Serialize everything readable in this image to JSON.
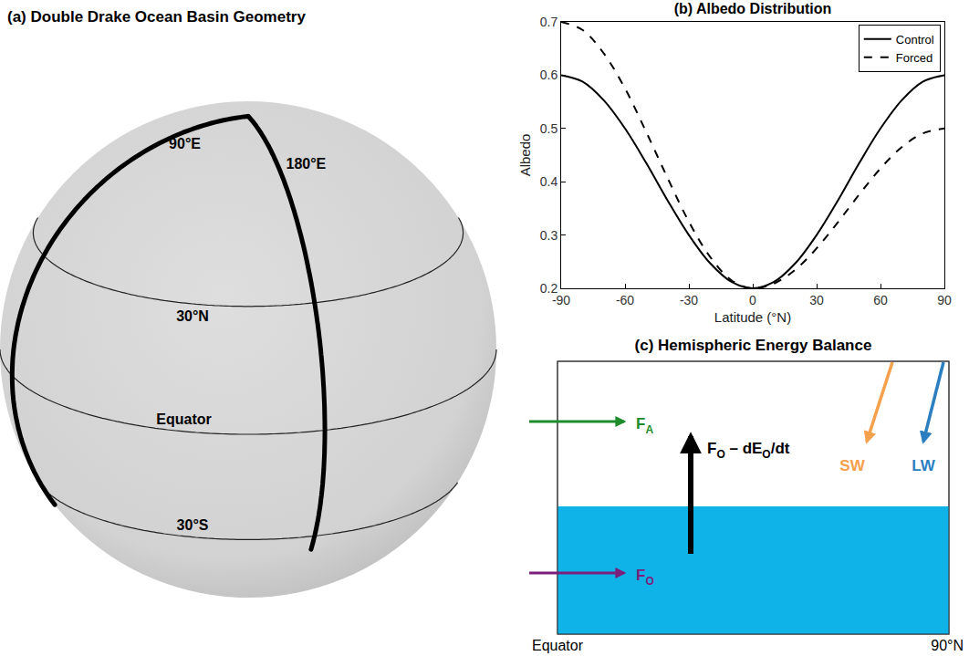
{
  "chart_data": {
    "type": "line",
    "title": "(b) Albedo Distribution",
    "xlabel": "Latitude (°N)",
    "ylabel": "Albedo",
    "x": [
      -90,
      -80,
      -70,
      -60,
      -50,
      -40,
      -30,
      -20,
      -10,
      0,
      10,
      20,
      30,
      40,
      50,
      60,
      70,
      80,
      90
    ],
    "series": [
      {
        "name": "Control",
        "color": "#000000",
        "line_style": "solid",
        "values": [
          0.6,
          0.588,
          0.553,
          0.5,
          0.435,
          0.365,
          0.3,
          0.247,
          0.212,
          0.2,
          0.212,
          0.247,
          0.3,
          0.365,
          0.435,
          0.5,
          0.553,
          0.588,
          0.6
        ]
      },
      {
        "name": "Forced",
        "color": "#000000",
        "line_style": "dash",
        "values": [
          0.7,
          0.685,
          0.641,
          0.575,
          0.493,
          0.407,
          0.325,
          0.259,
          0.215,
          0.2,
          0.209,
          0.235,
          0.275,
          0.324,
          0.376,
          0.425,
          0.465,
          0.491,
          0.5
        ]
      }
    ],
    "xlim": [
      -90,
      90
    ],
    "xticks": [
      -90,
      -60,
      -30,
      0,
      30,
      60,
      90
    ],
    "ylim": [
      0.2,
      0.7
    ],
    "yticks": [
      0.2,
      0.3,
      0.4,
      0.5,
      0.6,
      0.7
    ],
    "grid": false,
    "legend": "top right"
  },
  "panel_a": {
    "title": "(a) Double Drake Ocean Basin Geometry",
    "meridians": [
      "90°E",
      "180°E"
    ],
    "latitudes": [
      "30°N",
      "Equator",
      "30°S"
    ]
  },
  "panel_c": {
    "title": "(c) Hemispheric Energy Balance",
    "atmosphere_transport": {
      "label": [
        {
          "text": "F"
        },
        {
          "text": "A",
          "sub": true
        }
      ],
      "color": "#1e8c2d"
    },
    "ocean_transport": {
      "label": [
        {
          "text": "F"
        },
        {
          "text": "O",
          "sub": true
        }
      ],
      "color": "#7b1f7b"
    },
    "ocean_heat_uptake": {
      "label": [
        {
          "text": "F"
        },
        {
          "text": "O",
          "sub": true
        },
        {
          "text": " – dE"
        },
        {
          "text": "O",
          "sub": true
        },
        {
          "text": "/dt"
        }
      ],
      "color": "#000000"
    },
    "shortwave": {
      "label": [
        {
          "text": "SW"
        }
      ],
      "color": "#f5a04b"
    },
    "longwave": {
      "label": [
        {
          "text": "LW"
        }
      ],
      "color": "#2b7fc1"
    },
    "ocean_color": "#10b3e8",
    "x_labels": [
      "Equator",
      "90°N"
    ]
  }
}
